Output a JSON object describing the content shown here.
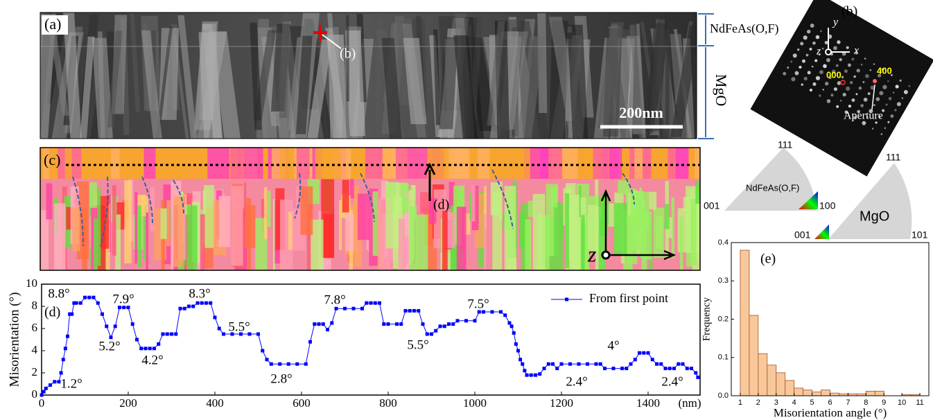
{
  "images": {
    "a": {
      "label": "(a)",
      "layer_top": "NdFeAs(O,F)",
      "layer_bottom": "MgO",
      "scale_bar": "200nm",
      "marker": "(b)"
    },
    "b": {
      "label": "(b)",
      "axis_y": "y",
      "axis_z": "z",
      "axis_x": "x",
      "spot_1": "000",
      "spot_2": "400",
      "aperture": "Aperture"
    },
    "c": {
      "label": "(c)",
      "profile": "(d)",
      "axis_z": "z"
    },
    "ipf": {
      "nd_top": "111",
      "nd_left": "001",
      "nd_right": "100",
      "nd_name": "NdFeAs(O,F)",
      "mgo_top": "111",
      "mgo_left": "001",
      "mgo_right": "101",
      "mgo_name": "MgO"
    }
  },
  "chart_data": [
    {
      "type": "line",
      "panel_label": "(d)",
      "ylabel": "Misorientation (°)",
      "xlabel": "(nm)",
      "x": [
        0,
        5,
        10,
        20,
        30,
        40,
        45,
        50,
        55,
        60,
        65,
        70,
        75,
        80,
        90,
        100,
        110,
        120,
        130,
        140,
        150,
        160,
        170,
        180,
        190,
        200,
        210,
        220,
        230,
        240,
        250,
        260,
        270,
        280,
        290,
        300,
        310,
        320,
        330,
        340,
        350,
        360,
        370,
        380,
        390,
        400,
        410,
        420,
        440,
        460,
        480,
        500,
        510,
        520,
        530,
        550,
        570,
        590,
        610,
        620,
        630,
        640,
        650,
        660,
        670,
        680,
        700,
        720,
        740,
        750,
        760,
        770,
        780,
        790,
        800,
        820,
        830,
        840,
        850,
        860,
        870,
        880,
        890,
        900,
        910,
        920,
        930,
        940,
        950,
        960,
        980,
        1000,
        1010,
        1020,
        1040,
        1060,
        1070,
        1080,
        1085,
        1090,
        1095,
        1100,
        1105,
        1110,
        1115,
        1120,
        1130,
        1140,
        1150,
        1160,
        1170,
        1180,
        1190,
        1200,
        1220,
        1240,
        1260,
        1280,
        1290,
        1300,
        1320,
        1340,
        1350,
        1360,
        1370,
        1380,
        1390,
        1400,
        1410,
        1420,
        1430,
        1440,
        1450,
        1460,
        1470,
        1480,
        1490,
        1500,
        1510,
        1515
      ],
      "series": [
        {
          "name": "From first point",
          "color": "#0000ff",
          "values": [
            0,
            0.3,
            0.6,
            0.9,
            1.2,
            1.2,
            2.0,
            3.2,
            4.2,
            5.3,
            7.3,
            7.3,
            8.3,
            8.3,
            8.3,
            8.8,
            8.8,
            8.8,
            8.3,
            7.3,
            6.2,
            5.2,
            6.2,
            7.9,
            7.9,
            7.9,
            6.4,
            5.0,
            4.2,
            4.2,
            4.2,
            4.2,
            4.6,
            5.5,
            5.5,
            5.5,
            5.5,
            7.8,
            7.8,
            8.0,
            8.0,
            8.3,
            8.3,
            8.3,
            8.3,
            7.0,
            6.0,
            5.5,
            5.5,
            5.5,
            5.5,
            5.5,
            4.0,
            3.2,
            2.8,
            2.8,
            2.8,
            2.8,
            2.8,
            4.8,
            6.4,
            6.4,
            6.4,
            5.9,
            6.5,
            7.8,
            7.8,
            7.8,
            7.8,
            8.3,
            8.3,
            8.3,
            8.3,
            6.4,
            6.4,
            6.4,
            6.4,
            7.6,
            7.6,
            7.6,
            7.6,
            6.4,
            5.5,
            5.5,
            5.8,
            6.2,
            6.2,
            6.4,
            6.4,
            6.7,
            6.7,
            6.7,
            7.5,
            7.5,
            7.5,
            7.5,
            7.2,
            6.5,
            6.2,
            5.6,
            4.6,
            4.0,
            3.2,
            2.8,
            2.2,
            1.8,
            1.8,
            1.8,
            1.9,
            2.4,
            2.8,
            2.8,
            2.4,
            2.8,
            2.8,
            2.8,
            2.8,
            2.8,
            2.8,
            2.4,
            2.4,
            2.4,
            2.4,
            2.8,
            3.2,
            3.8,
            3.8,
            3.8,
            3.2,
            2.8,
            2.8,
            2.4,
            2.4,
            2.4,
            2.8,
            2.8,
            2.4,
            2.4,
            2.0,
            1.6
          ]
        }
      ],
      "xlim": [
        0,
        1520
      ],
      "xticks": [
        0,
        200,
        400,
        600,
        800,
        1000,
        1200,
        1400
      ],
      "ylim": [
        0,
        10
      ],
      "yticks": [
        0,
        2,
        4,
        6,
        8,
        10
      ],
      "legend": "upper right",
      "annotations": [
        "8.8°",
        "7.9°",
        "8.3°",
        "5.5°",
        "7.8°",
        "7.5°",
        "5.2°",
        "4.2°",
        "2.8°",
        "5.5°",
        "1.2°",
        "2.4°",
        "4°",
        "2.4°"
      ]
    },
    {
      "type": "histogram",
      "panel_label": "(e)",
      "xlabel": "Misorientation angle (°)",
      "ylabel": "Frequency",
      "color": "#f8c89a",
      "edge_color": "#a0522d",
      "bins": [
        1,
        1.5,
        2,
        2.5,
        3,
        3.5,
        4,
        4.5,
        5,
        5.5,
        6,
        6.5,
        7,
        7.5,
        8,
        8.5,
        9,
        9.5,
        10,
        10.5,
        11
      ],
      "values": [
        0.38,
        0.21,
        0.11,
        0.08,
        0.06,
        0.04,
        0.02,
        0.015,
        0.01,
        0.015,
        0.007,
        0.005,
        0.005,
        0.005,
        0.012,
        0.012,
        0,
        0,
        0.003,
        0.003
      ],
      "xlim": [
        0.5,
        11.5
      ],
      "xticks": [
        1,
        2,
        3,
        4,
        5,
        6,
        7,
        8,
        9,
        10,
        11
      ],
      "ylim": [
        0,
        0.4
      ],
      "yticks": [
        {
          "value": 0,
          "label": "0.0"
        },
        0.1,
        0.2,
        0.3,
        0.4
      ]
    }
  ]
}
